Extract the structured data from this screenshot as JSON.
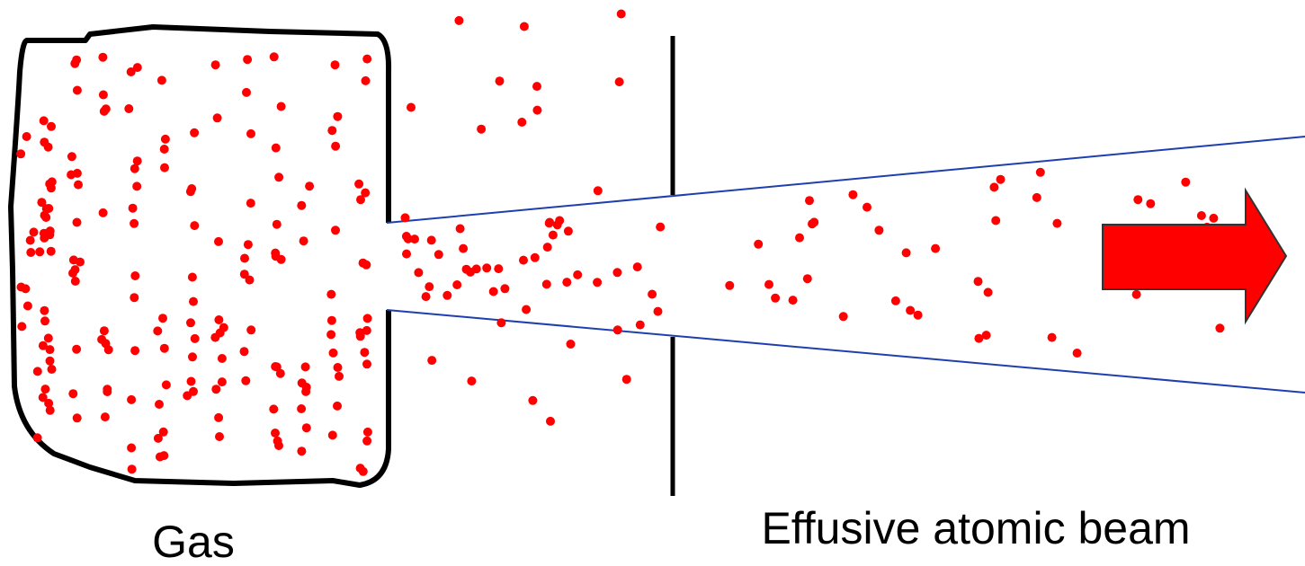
{
  "labels": {
    "gas": "Gas",
    "beam": "Effusive atomic beam"
  }
}
